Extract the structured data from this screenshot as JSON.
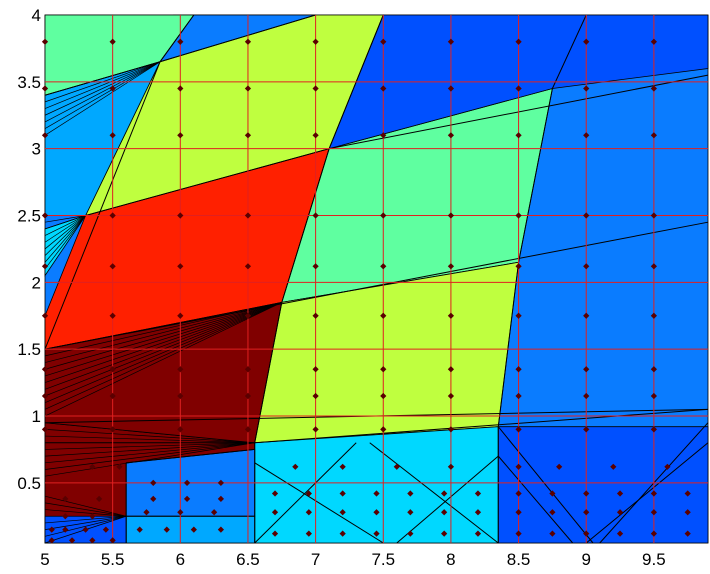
{
  "chart_data": {
    "type": "heatmap",
    "title": "",
    "xlabel": "",
    "ylabel": "",
    "xlim": [
      5,
      9.9
    ],
    "ylim": [
      0.05,
      4
    ],
    "x_ticks": [
      5,
      5.5,
      6,
      6.5,
      7,
      7.5,
      8,
      8.5,
      9,
      9.5
    ],
    "x_tick_labels": [
      "5",
      "5.5",
      "6",
      "6.5",
      "7",
      "7.5",
      "8",
      "8.5",
      "9",
      "9.5"
    ],
    "y_ticks": [
      0.5,
      1,
      1.5,
      2,
      2.5,
      3,
      3.5,
      4
    ],
    "y_tick_labels": [
      "0.5",
      "1",
      "1.5",
      "2",
      "2.5",
      "3",
      "3.5",
      "4"
    ],
    "grid": true,
    "colors": {
      "grid": "#e02020",
      "outline": "#000000",
      "point": "#5a0000",
      "dark_red": "#800000",
      "red": "#ff2000",
      "yellow_green": "#bfff3f",
      "sea_green": "#5fffa0",
      "cyan": "#00d8ff",
      "sky": "#00a8ff",
      "mid_blue": "#0a7cff",
      "blue": "#0050ff"
    },
    "regions": [
      {
        "color": "mid_blue",
        "points": [
          [
            5,
            0.05
          ],
          [
            9.9,
            0.05
          ],
          [
            9.9,
            4
          ],
          [
            5,
            4
          ]
        ]
      },
      {
        "color": "dark_red",
        "points": [
          [
            5,
            0.05
          ],
          [
            6.55,
            0.05
          ],
          [
            6.55,
            0.8
          ],
          [
            5,
            0.95
          ]
        ]
      },
      {
        "color": "dark_red",
        "points": [
          [
            5,
            0.95
          ],
          [
            6.55,
            0.8
          ],
          [
            6.75,
            1.85
          ],
          [
            5,
            1.5
          ]
        ]
      },
      {
        "color": "red",
        "points": [
          [
            5,
            1.5
          ],
          [
            6.75,
            1.85
          ],
          [
            7.1,
            3.0
          ],
          [
            5.3,
            2.5
          ],
          [
            5,
            1.75
          ]
        ]
      },
      {
        "color": "cyan",
        "points": [
          [
            5,
            2.05
          ],
          [
            5.3,
            2.5
          ],
          [
            5,
            2.4
          ]
        ]
      },
      {
        "color": "yellow_green",
        "points": [
          [
            5.3,
            2.5
          ],
          [
            7.1,
            3.0
          ],
          [
            7.5,
            4
          ],
          [
            5.95,
            4
          ],
          [
            5.85,
            3.65
          ]
        ]
      },
      {
        "color": "sky",
        "points": [
          [
            5,
            2.5
          ],
          [
            5.3,
            2.5
          ],
          [
            5.85,
            3.65
          ],
          [
            5,
            3.4
          ]
        ]
      },
      {
        "color": "sea_green",
        "points": [
          [
            5,
            3.4
          ],
          [
            5.85,
            3.65
          ],
          [
            6.1,
            4
          ],
          [
            5,
            4
          ]
        ]
      },
      {
        "color": "mid_blue",
        "points": [
          [
            5.85,
            3.65
          ],
          [
            6.1,
            4
          ],
          [
            7,
            4
          ]
        ]
      },
      {
        "color": "sea_green",
        "points": [
          [
            6.75,
            1.85
          ],
          [
            7.1,
            3.0
          ],
          [
            8.75,
            3.45
          ],
          [
            8.5,
            2.15
          ]
        ]
      },
      {
        "color": "yellow_green",
        "points": [
          [
            6.55,
            0.8
          ],
          [
            6.75,
            1.85
          ],
          [
            8.5,
            2.15
          ],
          [
            8.35,
            0.92
          ]
        ]
      },
      {
        "color": "blue",
        "points": [
          [
            7.1,
            3.0
          ],
          [
            7.5,
            4
          ],
          [
            9.9,
            4
          ],
          [
            9.9,
            3.6
          ],
          [
            8.75,
            3.45
          ]
        ]
      },
      {
        "color": "cyan",
        "points": [
          [
            6.55,
            0.05
          ],
          [
            8.35,
            0.05
          ],
          [
            8.35,
            0.92
          ],
          [
            6.55,
            0.8
          ]
        ]
      },
      {
        "color": "mid_blue",
        "points": [
          [
            5.6,
            0.25
          ],
          [
            6.55,
            0.25
          ],
          [
            6.55,
            0.75
          ],
          [
            5.6,
            0.65
          ]
        ]
      },
      {
        "color": "sky",
        "points": [
          [
            5.6,
            0.25
          ],
          [
            6.55,
            0.25
          ],
          [
            6.55,
            0.05
          ],
          [
            5.6,
            0.05
          ]
        ]
      },
      {
        "color": "blue",
        "points": [
          [
            5,
            0.05
          ],
          [
            5.6,
            0.05
          ],
          [
            5.6,
            0.25
          ],
          [
            5,
            0.25
          ]
        ]
      },
      {
        "color": "blue",
        "points": [
          [
            8.35,
            0.05
          ],
          [
            9.9,
            0.05
          ],
          [
            9.9,
            0.92
          ],
          [
            8.35,
            0.92
          ]
        ]
      }
    ],
    "lines": [
      [
        [
          5,
          1.5
        ],
        [
          9.9,
          2.45
        ]
      ],
      [
        [
          5,
          0.95
        ],
        [
          9.9,
          1.05
        ]
      ],
      [
        [
          5.3,
          2.5
        ],
        [
          7.1,
          3.0
        ]
      ],
      [
        [
          7.1,
          3.0
        ],
        [
          9.9,
          3.55
        ]
      ],
      [
        [
          5,
          0.8
        ],
        [
          6.55,
          0.8
        ]
      ],
      [
        [
          6.55,
          0.8
        ],
        [
          9.9,
          1.05
        ]
      ],
      [
        [
          6.55,
          0.05
        ],
        [
          6.55,
          0.8
        ]
      ],
      [
        [
          8.35,
          0.05
        ],
        [
          8.35,
          0.92
        ]
      ],
      [
        [
          6.55,
          0.8
        ],
        [
          6.75,
          1.85
        ]
      ],
      [
        [
          6.75,
          1.85
        ],
        [
          7.1,
          3.0
        ]
      ],
      [
        [
          7.1,
          3.0
        ],
        [
          7.5,
          4.0
        ]
      ],
      [
        [
          8.35,
          0.92
        ],
        [
          8.5,
          2.15
        ]
      ],
      [
        [
          8.5,
          2.15
        ],
        [
          8.75,
          3.45
        ]
      ],
      [
        [
          8.75,
          3.45
        ],
        [
          9.0,
          4.0
        ]
      ],
      [
        [
          5,
          1.5
        ],
        [
          5.85,
          3.65
        ]
      ],
      [
        [
          5.85,
          3.65
        ],
        [
          6.1,
          4.0
        ]
      ],
      [
        [
          5.85,
          3.65
        ],
        [
          7.0,
          4.0
        ]
      ],
      [
        [
          5,
          3.4
        ],
        [
          5.85,
          3.65
        ]
      ],
      [
        [
          6.55,
          0.65
        ],
        [
          7.5,
          0.05
        ]
      ],
      [
        [
          6.55,
          0.05
        ],
        [
          7.3,
          0.8
        ]
      ],
      [
        [
          7.4,
          0.8
        ],
        [
          8.35,
          0.05
        ]
      ],
      [
        [
          7.6,
          0.05
        ],
        [
          8.35,
          0.7
        ]
      ],
      [
        [
          8.35,
          0.92
        ],
        [
          9.05,
          0.05
        ]
      ],
      [
        [
          8.35,
          0.7
        ],
        [
          8.9,
          0.05
        ]
      ],
      [
        [
          9.0,
          0.05
        ],
        [
          9.9,
          0.8
        ]
      ],
      [
        [
          9.1,
          0.05
        ],
        [
          9.9,
          0.95
        ]
      ],
      [
        [
          5.6,
          0.25
        ],
        [
          6.55,
          0.25
        ]
      ],
      [
        [
          5.6,
          0.05
        ],
        [
          5.6,
          0.65
        ]
      ],
      [
        [
          5.6,
          0.65
        ],
        [
          6.55,
          0.75
        ]
      ]
    ],
    "fans": [
      {
        "apex": [
          5.85,
          3.65
        ],
        "ys": [
          3.1,
          3.15,
          3.2,
          3.25,
          3.3,
          3.35,
          3.4
        ]
      },
      {
        "apex": [
          5.3,
          2.5
        ],
        "ys": [
          2.1,
          2.15,
          2.2,
          2.25,
          2.3,
          2.35,
          2.4,
          2.45
        ]
      },
      {
        "apex": [
          6.75,
          1.85
        ],
        "ys": [
          1.0,
          1.05,
          1.1,
          1.15,
          1.2,
          1.25,
          1.3,
          1.35,
          1.4,
          1.45,
          1.5
        ]
      },
      {
        "apex": [
          6.55,
          0.8
        ],
        "ys": [
          0.55,
          0.6,
          0.65,
          0.7,
          0.75,
          0.85,
          0.9
        ]
      },
      {
        "apex": [
          5.6,
          0.25
        ],
        "ys": [
          0.05,
          0.1,
          0.15,
          0.2,
          0.3,
          0.35,
          0.4
        ]
      }
    ],
    "points": [
      [
        5,
        3.8
      ],
      [
        5.5,
        3.8
      ],
      [
        6,
        3.8
      ],
      [
        6.5,
        3.8
      ],
      [
        7,
        3.8
      ],
      [
        7.5,
        3.8
      ],
      [
        8,
        3.8
      ],
      [
        8.5,
        3.8
      ],
      [
        9,
        3.8
      ],
      [
        9.5,
        3.8
      ],
      [
        5,
        3.45
      ],
      [
        5.5,
        3.45
      ],
      [
        6,
        3.45
      ],
      [
        6.5,
        3.45
      ],
      [
        7,
        3.45
      ],
      [
        7.5,
        3.45
      ],
      [
        8,
        3.45
      ],
      [
        8.5,
        3.45
      ],
      [
        9,
        3.45
      ],
      [
        9.5,
        3.45
      ],
      [
        5,
        3.1
      ],
      [
        5.5,
        3.1
      ],
      [
        6,
        3.1
      ],
      [
        6.5,
        3.1
      ],
      [
        7,
        3.1
      ],
      [
        7.5,
        3.1
      ],
      [
        8,
        3.1
      ],
      [
        8.5,
        3.1
      ],
      [
        9,
        3.1
      ],
      [
        9.5,
        3.1
      ],
      [
        5,
        2.5
      ],
      [
        5.5,
        2.5
      ],
      [
        6,
        2.5
      ],
      [
        6.5,
        2.5
      ],
      [
        7,
        2.5
      ],
      [
        7.5,
        2.5
      ],
      [
        8,
        2.5
      ],
      [
        8.5,
        2.5
      ],
      [
        9,
        2.5
      ],
      [
        9.5,
        2.5
      ],
      [
        5,
        2.12
      ],
      [
        5.5,
        2.12
      ],
      [
        6,
        2.12
      ],
      [
        6.5,
        2.12
      ],
      [
        7,
        2.12
      ],
      [
        7.5,
        2.12
      ],
      [
        8,
        2.12
      ],
      [
        8.5,
        2.12
      ],
      [
        9,
        2.12
      ],
      [
        9.5,
        2.12
      ],
      [
        5,
        1.75
      ],
      [
        5.5,
        1.75
      ],
      [
        6,
        1.75
      ],
      [
        6.5,
        1.75
      ],
      [
        7,
        1.75
      ],
      [
        7.5,
        1.75
      ],
      [
        8,
        1.75
      ],
      [
        8.5,
        1.75
      ],
      [
        9,
        1.75
      ],
      [
        9.5,
        1.75
      ],
      [
        5,
        1.35
      ],
      [
        5.5,
        1.35
      ],
      [
        6,
        1.35
      ],
      [
        6.5,
        1.35
      ],
      [
        7,
        1.35
      ],
      [
        7.5,
        1.35
      ],
      [
        8,
        1.35
      ],
      [
        8.5,
        1.35
      ],
      [
        9,
        1.35
      ],
      [
        9.5,
        1.35
      ],
      [
        5,
        1.15
      ],
      [
        5.5,
        1.15
      ],
      [
        6,
        1.15
      ],
      [
        6.5,
        1.15
      ],
      [
        7,
        1.15
      ],
      [
        7.5,
        1.15
      ],
      [
        8,
        1.15
      ],
      [
        8.5,
        1.15
      ],
      [
        9,
        1.15
      ],
      [
        9.5,
        1.15
      ],
      [
        5,
        0.9
      ],
      [
        5.5,
        0.9
      ],
      [
        6,
        0.9
      ],
      [
        6.5,
        0.9
      ],
      [
        7,
        0.9
      ],
      [
        7.5,
        0.9
      ],
      [
        8,
        0.9
      ],
      [
        8.5,
        0.9
      ],
      [
        9,
        0.9
      ],
      [
        9.5,
        0.9
      ],
      [
        5.35,
        0.62
      ],
      [
        5.55,
        0.62
      ],
      [
        5.8,
        0.5
      ],
      [
        6.05,
        0.5
      ],
      [
        6.3,
        0.5
      ],
      [
        6.85,
        0.62
      ],
      [
        7.2,
        0.62
      ],
      [
        7.6,
        0.62
      ],
      [
        8.0,
        0.62
      ],
      [
        8.5,
        0.62
      ],
      [
        8.8,
        0.62
      ],
      [
        9.2,
        0.62
      ],
      [
        9.6,
        0.62
      ],
      [
        5.15,
        0.38
      ],
      [
        5.4,
        0.38
      ],
      [
        5.8,
        0.38
      ],
      [
        6.05,
        0.38
      ],
      [
        6.3,
        0.38
      ],
      [
        6.7,
        0.42
      ],
      [
        6.95,
        0.42
      ],
      [
        7.2,
        0.42
      ],
      [
        7.45,
        0.42
      ],
      [
        7.7,
        0.42
      ],
      [
        7.95,
        0.42
      ],
      [
        8.2,
        0.42
      ],
      [
        8.5,
        0.42
      ],
      [
        8.75,
        0.42
      ],
      [
        9.0,
        0.42
      ],
      [
        9.25,
        0.42
      ],
      [
        9.5,
        0.42
      ],
      [
        9.75,
        0.42
      ],
      [
        5.15,
        0.25
      ],
      [
        5.35,
        0.25
      ],
      [
        5.75,
        0.28
      ],
      [
        6.0,
        0.28
      ],
      [
        6.25,
        0.28
      ],
      [
        6.7,
        0.28
      ],
      [
        6.95,
        0.28
      ],
      [
        7.2,
        0.28
      ],
      [
        7.45,
        0.28
      ],
      [
        7.7,
        0.28
      ],
      [
        7.95,
        0.28
      ],
      [
        8.2,
        0.28
      ],
      [
        8.5,
        0.28
      ],
      [
        8.75,
        0.28
      ],
      [
        9.0,
        0.28
      ],
      [
        9.25,
        0.28
      ],
      [
        9.5,
        0.28
      ],
      [
        9.75,
        0.28
      ],
      [
        5.05,
        0.15
      ],
      [
        5.15,
        0.15
      ],
      [
        5.3,
        0.15
      ],
      [
        5.45,
        0.15
      ],
      [
        5.7,
        0.15
      ],
      [
        5.9,
        0.15
      ],
      [
        6.1,
        0.15
      ],
      [
        6.3,
        0.15
      ],
      [
        6.7,
        0.12
      ],
      [
        6.95,
        0.12
      ],
      [
        7.2,
        0.12
      ],
      [
        7.45,
        0.12
      ],
      [
        7.7,
        0.12
      ],
      [
        7.95,
        0.12
      ],
      [
        8.2,
        0.12
      ],
      [
        8.5,
        0.12
      ],
      [
        8.75,
        0.12
      ],
      [
        9.0,
        0.12
      ],
      [
        9.25,
        0.12
      ],
      [
        9.5,
        0.12
      ],
      [
        9.75,
        0.12
      ],
      [
        5.05,
        0.07
      ],
      [
        5.2,
        0.07
      ],
      [
        5.35,
        0.07
      ],
      [
        5.5,
        0.07
      ]
    ]
  }
}
